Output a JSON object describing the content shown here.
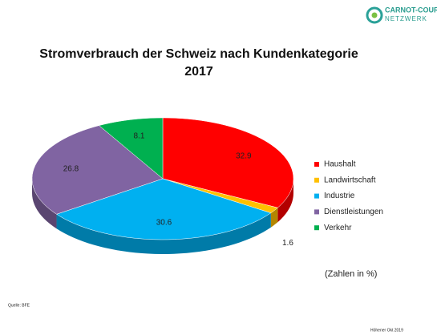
{
  "logo": [
    "CARNOT-COURNOT",
    "NETZWERK"
  ],
  "chart_data": {
    "type": "pie",
    "title": [
      "Stromverbrauch der Schweiz nach Kundenkategorie",
      "2017"
    ],
    "categories": [
      "Haushalt",
      "Landwirtschaft",
      "Industrie",
      "Dienstleistungen",
      "Verkehr"
    ],
    "values": [
      32.9,
      1.6,
      30.6,
      26.8,
      8.1
    ],
    "colors": [
      "#ff0000",
      "#ffc000",
      "#00b0f0",
      "#8064a2",
      "#00b050"
    ],
    "legend": "right",
    "note": "(Zahlen in %)"
  },
  "source": "Quelle: BFE",
  "footer": "Höhener Okt 2019"
}
